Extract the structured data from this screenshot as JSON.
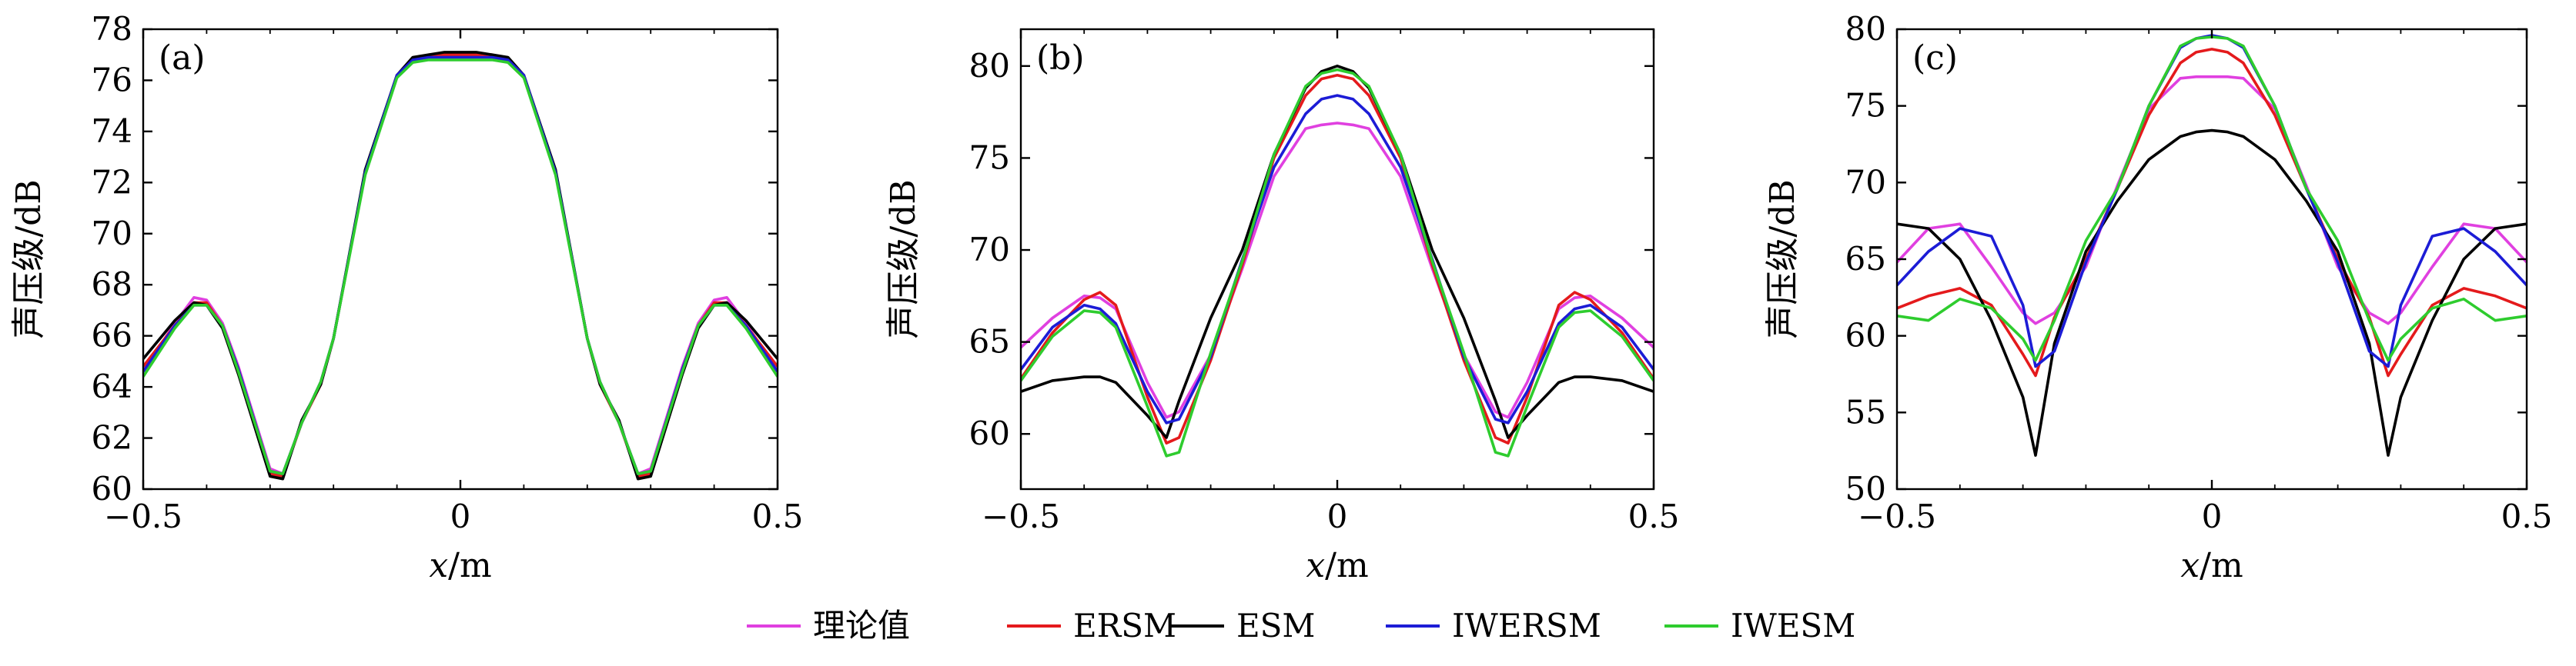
{
  "chart_data": [
    {
      "type": "line",
      "panel_label": "(a)",
      "xlabel": "x/m",
      "ylabel": "声压级/dB",
      "xlim": [
        -0.5,
        0.5
      ],
      "ylim": [
        60,
        78
      ],
      "xticks": [
        -0.5,
        0,
        0.5
      ],
      "xtick_labels": [
        "−0.5",
        "0",
        "0.5"
      ],
      "yticks": [
        60,
        62,
        64,
        66,
        68,
        70,
        72,
        74,
        76,
        78
      ],
      "ytick_labels": [
        "60",
        "62",
        "64",
        "66",
        "68",
        "70",
        "72",
        "74",
        "76",
        "78"
      ],
      "x": [
        -0.5,
        -0.45,
        -0.42,
        -0.4,
        -0.375,
        -0.35,
        -0.3,
        -0.28,
        -0.25,
        -0.22,
        -0.2,
        -0.15,
        -0.1,
        -0.075,
        -0.05,
        -0.025,
        0,
        0.025,
        0.05,
        0.075,
        0.1,
        0.15,
        0.2,
        0.22,
        0.25,
        0.28,
        0.3,
        0.35,
        0.375,
        0.4,
        0.42,
        0.45,
        0.5
      ],
      "series": [
        {
          "name": "理论值",
          "color": "#e040e0",
          "values": [
            64.6,
            66.5,
            67.5,
            67.4,
            66.5,
            64.8,
            60.8,
            60.6,
            62.6,
            64.2,
            65.9,
            72.4,
            76.2,
            76.8,
            76.9,
            76.9,
            76.9,
            76.9,
            76.9,
            76.8,
            76.2,
            72.4,
            65.9,
            64.2,
            62.6,
            60.6,
            60.8,
            64.8,
            66.5,
            67.4,
            67.5,
            66.5,
            64.6
          ]
        },
        {
          "name": "ERSM",
          "color": "#e41a1c",
          "values": [
            64.8,
            66.4,
            67.3,
            67.3,
            66.4,
            64.7,
            60.6,
            60.5,
            62.6,
            64.1,
            65.9,
            72.4,
            76.2,
            76.8,
            77.0,
            77.0,
            77.0,
            77.0,
            77.0,
            76.8,
            76.2,
            72.4,
            65.9,
            64.1,
            62.6,
            60.5,
            60.6,
            64.7,
            66.4,
            67.3,
            67.3,
            66.4,
            64.8
          ]
        },
        {
          "name": "ESM",
          "color": "#000000",
          "values": [
            65.1,
            66.6,
            67.3,
            67.2,
            66.3,
            64.5,
            60.5,
            60.4,
            62.7,
            64.1,
            65.9,
            72.5,
            76.2,
            76.9,
            77.0,
            77.1,
            77.1,
            77.1,
            77.0,
            76.9,
            76.2,
            72.5,
            65.9,
            64.1,
            62.7,
            60.4,
            60.5,
            64.5,
            66.3,
            67.2,
            67.3,
            66.6,
            65.1
          ]
        },
        {
          "name": "IWERSM",
          "color": "#1c1cd6",
          "values": [
            64.6,
            66.4,
            67.2,
            67.2,
            66.4,
            64.7,
            60.7,
            60.6,
            62.6,
            64.2,
            65.9,
            72.4,
            76.2,
            76.8,
            76.9,
            76.9,
            76.9,
            76.9,
            76.9,
            76.8,
            76.2,
            72.4,
            65.9,
            64.2,
            62.6,
            60.6,
            60.7,
            64.7,
            66.4,
            67.2,
            67.2,
            66.4,
            64.6
          ]
        },
        {
          "name": "IWESM",
          "color": "#2ecc2e",
          "values": [
            64.4,
            66.3,
            67.2,
            67.2,
            66.4,
            64.6,
            60.7,
            60.6,
            62.6,
            64.2,
            65.9,
            72.3,
            76.1,
            76.7,
            76.8,
            76.8,
            76.8,
            76.8,
            76.8,
            76.7,
            76.1,
            72.3,
            65.9,
            64.2,
            62.6,
            60.6,
            60.7,
            64.6,
            66.4,
            67.2,
            67.2,
            66.3,
            64.4
          ]
        }
      ]
    },
    {
      "type": "line",
      "panel_label": "(b)",
      "xlabel": "x/m",
      "ylabel": "声压级/dB",
      "xlim": [
        -0.5,
        0.5
      ],
      "ylim": [
        57,
        82
      ],
      "xticks": [
        -0.5,
        0,
        0.5
      ],
      "xtick_labels": [
        "−0.5",
        "0",
        "0.5"
      ],
      "yticks": [
        60,
        65,
        70,
        75,
        80
      ],
      "ytick_labels": [
        "60",
        "65",
        "70",
        "75",
        "80"
      ],
      "x": [
        -0.5,
        -0.45,
        -0.4,
        -0.375,
        -0.35,
        -0.3,
        -0.27,
        -0.25,
        -0.2,
        -0.15,
        -0.1,
        -0.05,
        -0.025,
        0,
        0.025,
        0.05,
        0.1,
        0.15,
        0.2,
        0.25,
        0.27,
        0.3,
        0.35,
        0.375,
        0.4,
        0.45,
        0.5
      ],
      "series": [
        {
          "name": "理论值",
          "color": "#e040e0",
          "values": [
            64.7,
            66.3,
            67.5,
            67.4,
            66.8,
            62.8,
            60.9,
            61.2,
            64.3,
            69.0,
            74.0,
            76.6,
            76.8,
            76.9,
            76.8,
            76.6,
            74.0,
            69.0,
            64.3,
            61.2,
            60.9,
            62.8,
            66.8,
            67.4,
            67.5,
            66.3,
            64.7
          ]
        },
        {
          "name": "ERSM",
          "color": "#e41a1c",
          "values": [
            63.0,
            65.5,
            67.3,
            67.7,
            67.0,
            62.0,
            59.5,
            59.8,
            64.0,
            69.2,
            75.0,
            78.4,
            79.3,
            79.5,
            79.3,
            78.4,
            75.0,
            69.2,
            64.0,
            59.8,
            59.5,
            62.0,
            67.0,
            67.7,
            67.3,
            65.5,
            63.0
          ]
        },
        {
          "name": "ESM",
          "color": "#000000",
          "values": [
            62.3,
            62.9,
            63.1,
            63.1,
            62.8,
            61.0,
            59.8,
            61.8,
            66.3,
            70.0,
            75.2,
            78.8,
            79.7,
            80.0,
            79.7,
            78.8,
            75.2,
            70.0,
            66.3,
            61.8,
            59.8,
            61.0,
            62.8,
            63.1,
            63.1,
            62.9,
            62.3
          ]
        },
        {
          "name": "IWERSM",
          "color": "#1c1cd6",
          "values": [
            63.5,
            65.8,
            67.0,
            66.8,
            66.0,
            62.3,
            60.6,
            60.8,
            64.2,
            69.5,
            74.5,
            77.4,
            78.2,
            78.4,
            78.2,
            77.4,
            74.5,
            69.5,
            64.2,
            60.8,
            60.6,
            62.3,
            66.0,
            66.8,
            67.0,
            65.8,
            63.5
          ]
        },
        {
          "name": "IWESM",
          "color": "#2ecc2e",
          "values": [
            62.9,
            65.3,
            66.7,
            66.6,
            65.8,
            61.5,
            58.8,
            59.0,
            64.4,
            69.4,
            75.2,
            78.9,
            79.6,
            79.8,
            79.6,
            78.9,
            75.2,
            69.4,
            64.4,
            59.0,
            58.8,
            61.5,
            65.8,
            66.6,
            66.7,
            65.3,
            62.9
          ]
        }
      ]
    },
    {
      "type": "line",
      "panel_label": "(c)",
      "xlabel": "x/m",
      "ylabel": "声压级/dB",
      "xlim": [
        -0.5,
        0.5
      ],
      "ylim": [
        50,
        80
      ],
      "xticks": [
        -0.5,
        0,
        0.5
      ],
      "xtick_labels": [
        "−0.5",
        "0",
        "0.5"
      ],
      "yticks": [
        50,
        55,
        60,
        65,
        70,
        75,
        80
      ],
      "ytick_labels": [
        "50",
        "55",
        "60",
        "65",
        "70",
        "75",
        "80"
      ],
      "x": [
        -0.5,
        -0.45,
        -0.4,
        -0.35,
        -0.3,
        -0.28,
        -0.25,
        -0.2,
        -0.15,
        -0.1,
        -0.05,
        -0.025,
        0,
        0.025,
        0.05,
        0.1,
        0.15,
        0.2,
        0.25,
        0.28,
        0.3,
        0.35,
        0.4,
        0.45,
        0.5
      ],
      "series": [
        {
          "name": "理论值",
          "color": "#e040e0",
          "values": [
            64.8,
            67.0,
            67.3,
            64.5,
            61.5,
            60.8,
            61.5,
            64.5,
            69.8,
            74.8,
            76.8,
            76.9,
            76.9,
            76.9,
            76.8,
            74.8,
            69.8,
            64.5,
            61.5,
            60.8,
            61.5,
            64.5,
            67.3,
            67.0,
            64.8
          ]
        },
        {
          "name": "ERSM",
          "color": "#e41a1c",
          "values": [
            61.8,
            62.6,
            63.1,
            62.0,
            58.8,
            57.4,
            61.2,
            65.0,
            69.6,
            74.4,
            77.8,
            78.5,
            78.7,
            78.5,
            77.8,
            74.4,
            69.6,
            65.0,
            61.2,
            57.4,
            58.8,
            62.0,
            63.1,
            62.6,
            61.8
          ]
        },
        {
          "name": "ESM",
          "color": "#000000",
          "values": [
            67.3,
            67.0,
            65.0,
            61.0,
            56.0,
            52.2,
            59.5,
            65.5,
            68.8,
            71.5,
            73.0,
            73.3,
            73.4,
            73.3,
            73.0,
            71.5,
            68.8,
            65.5,
            59.5,
            52.2,
            56.0,
            61.0,
            65.0,
            67.0,
            67.3
          ]
        },
        {
          "name": "IWERSM",
          "color": "#1c1cd6",
          "values": [
            63.3,
            65.5,
            67.0,
            66.5,
            62.0,
            58.0,
            59.0,
            64.8,
            69.6,
            75.0,
            78.8,
            79.4,
            79.6,
            79.4,
            78.8,
            75.0,
            69.6,
            64.8,
            59.0,
            58.0,
            62.0,
            66.5,
            67.0,
            65.5,
            63.3
          ]
        },
        {
          "name": "IWESM",
          "color": "#2ecc2e",
          "values": [
            61.3,
            61.0,
            62.4,
            61.8,
            59.8,
            58.4,
            61.0,
            66.2,
            69.6,
            75.0,
            78.9,
            79.4,
            79.5,
            79.4,
            78.9,
            75.0,
            69.6,
            66.2,
            61.0,
            58.4,
            59.8,
            61.8,
            62.4,
            61.0,
            61.3
          ]
        }
      ]
    }
  ],
  "legend": {
    "items": [
      {
        "label": "理论值",
        "color": "#e040e0"
      },
      {
        "label": "ERSM",
        "color": "#e41a1c"
      },
      {
        "label": "ESM",
        "color": "#000000"
      },
      {
        "label": "IWERSM",
        "color": "#1c1cd6"
      },
      {
        "label": "IWESM",
        "color": "#2ecc2e"
      }
    ]
  }
}
